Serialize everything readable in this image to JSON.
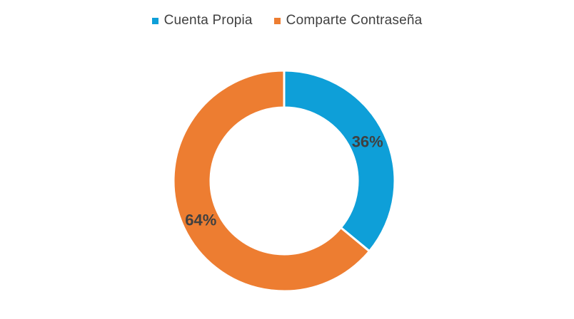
{
  "chart_data": {
    "type": "pie",
    "variant": "donut",
    "categories": [
      "Cuenta Propia",
      "Comparte Contraseña"
    ],
    "values": [
      36,
      64
    ],
    "data_labels": [
      "36%",
      "64%"
    ],
    "colors": [
      "#0E9FD8",
      "#ED7D31"
    ],
    "legend_position": "top",
    "start_angle_deg": 0,
    "direction": "clockwise"
  }
}
